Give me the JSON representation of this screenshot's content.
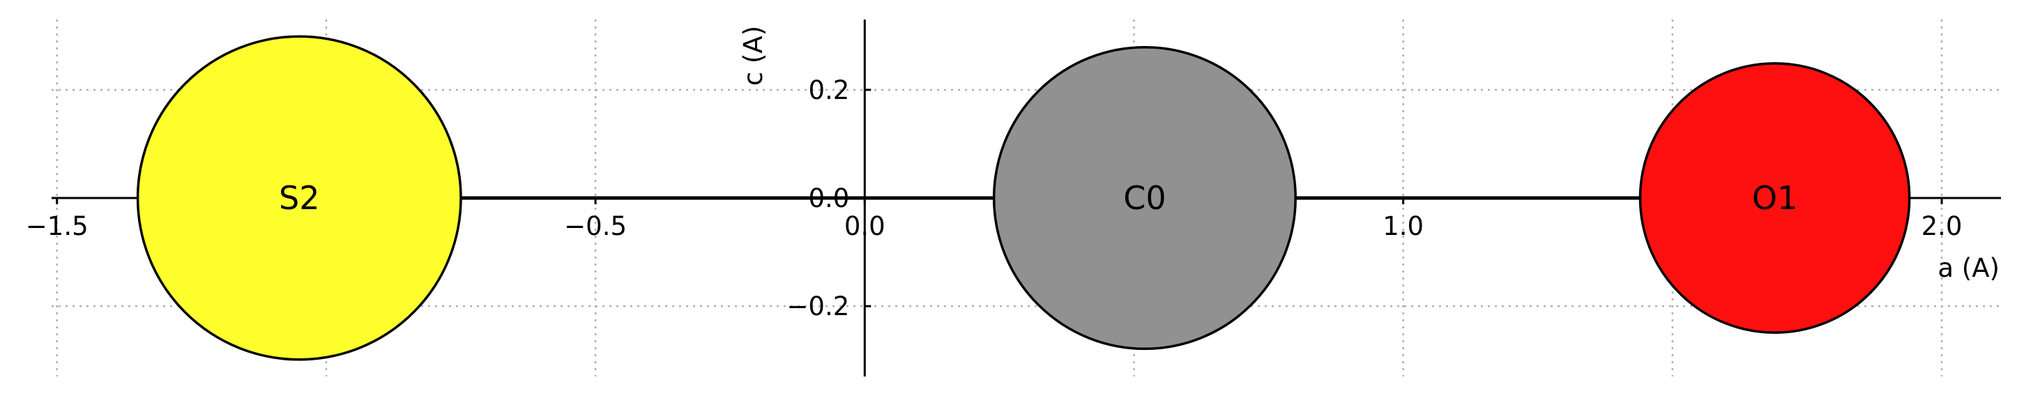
{
  "chart_data": {
    "type": "scatter",
    "title": "",
    "xlabel": "a (A)",
    "ylabel": "c (A)",
    "xlim": [
      -1.51,
      2.11
    ],
    "ylim": [
      -0.33,
      0.33
    ],
    "grid": true,
    "x_ticks": [
      {
        "value": -1.5,
        "label": "−1.5"
      },
      {
        "value": -1.0,
        "label": ""
      },
      {
        "value": -0.5,
        "label": "−0.5"
      },
      {
        "value": 0.0,
        "label": "0.0"
      },
      {
        "value": 0.5,
        "label": ""
      },
      {
        "value": 1.0,
        "label": "1.0"
      },
      {
        "value": 1.5,
        "label": ""
      },
      {
        "value": 2.0,
        "label": "2.0"
      }
    ],
    "y_ticks": [
      {
        "value": -0.2,
        "label": "−0.2"
      },
      {
        "value": 0.0,
        "label": "0.0"
      },
      {
        "value": 0.2,
        "label": "0.2"
      }
    ],
    "atoms": [
      {
        "label": "S2",
        "x": -1.05,
        "y": 0.0,
        "radius": 0.3,
        "color": "#ffff2e"
      },
      {
        "label": "C0",
        "x": 0.52,
        "y": 0.0,
        "radius": 0.28,
        "color": "#919191"
      },
      {
        "label": "O1",
        "x": 1.69,
        "y": 0.0,
        "radius": 0.25,
        "color": "#ff1010"
      }
    ],
    "bonds": [
      {
        "from": "S2",
        "to": "C0"
      },
      {
        "from": "C0",
        "to": "O1"
      }
    ]
  }
}
